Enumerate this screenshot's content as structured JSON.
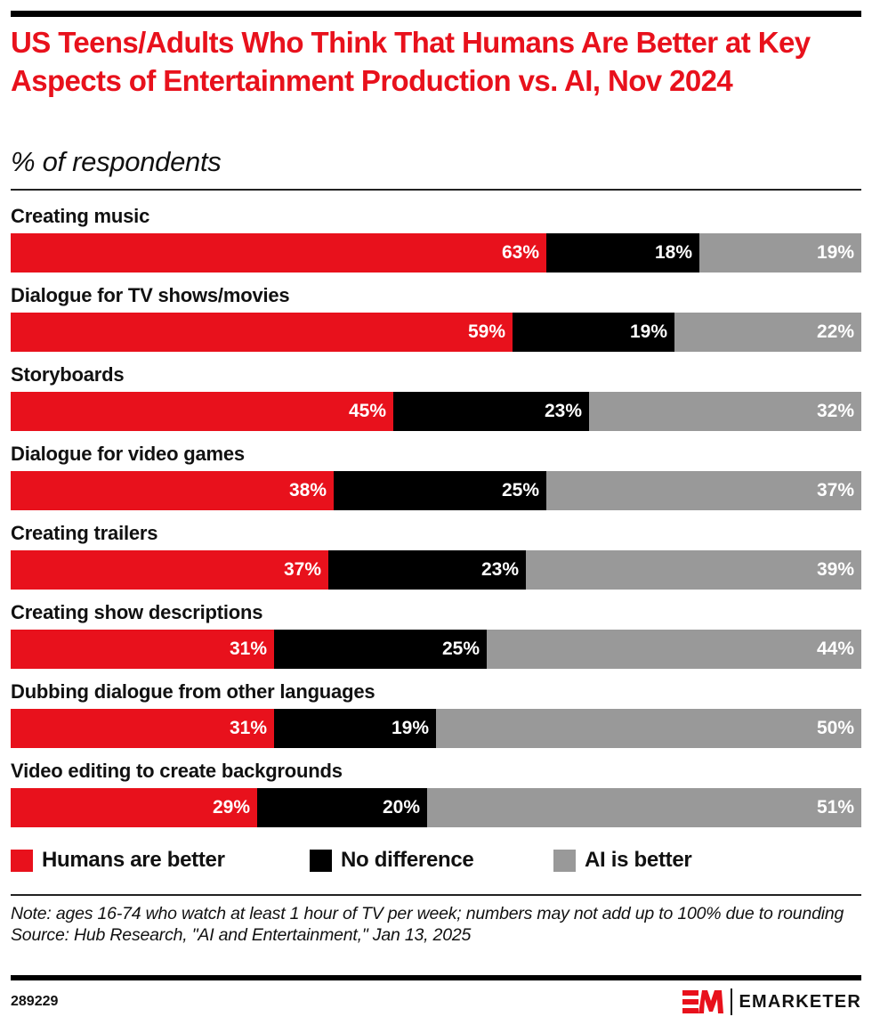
{
  "header": {
    "title": "US Teens/Adults Who Think That Humans Are Better at Key Aspects of Entertainment Production vs. AI, Nov 2024",
    "subtitle": "% of respondents"
  },
  "colors": {
    "humans": "#e8111c",
    "no_difference": "#000000",
    "ai": "#999999"
  },
  "chart_data": {
    "type": "bar",
    "orientation": "horizontal",
    "stacked": true,
    "title": "US Teens/Adults Who Think That Humans Are Better at Key Aspects of Entertainment Production vs. AI, Nov 2024",
    "subtitle": "% of respondents",
    "xlabel": "",
    "ylabel": "",
    "xlim": [
      0,
      100
    ],
    "grid": false,
    "legend_position": "bottom",
    "categories": [
      "Creating music",
      "Dialogue for TV shows/movies",
      "Storyboards",
      "Dialogue for video games",
      "Creating trailers",
      "Creating show descriptions",
      "Dubbing dialogue from other languages",
      "Video editing to create backgrounds"
    ],
    "series": [
      {
        "name": "Humans are better",
        "values": [
          63,
          59,
          45,
          38,
          37,
          31,
          31,
          29
        ],
        "labels": [
          "63%",
          "59%",
          "45%",
          "38%",
          "37%",
          "31%",
          "31%",
          "29%"
        ]
      },
      {
        "name": "No difference",
        "values": [
          18,
          19,
          23,
          25,
          23,
          25,
          19,
          20
        ],
        "labels": [
          "18%",
          "19%",
          "23%",
          "25%",
          "23%",
          "25%",
          "19%",
          "20%"
        ]
      },
      {
        "name": "AI is better",
        "values": [
          19,
          22,
          32,
          37,
          39,
          44,
          50,
          51
        ],
        "labels": [
          "19%",
          "22%",
          "32%",
          "37%",
          "39%",
          "44%",
          "50%",
          "51%"
        ]
      }
    ]
  },
  "legend": [
    {
      "label": "Humans are better"
    },
    {
      "label": "No difference"
    },
    {
      "label": "AI is better"
    }
  ],
  "footer": {
    "note": "Note: ages 16-74 who watch at least 1 hour of TV per week; numbers may not add up to 100% due to rounding",
    "source": "Source: Hub Research, \"AI and Entertainment,\" Jan 13, 2025",
    "chart_id": "289229",
    "brand": "EMARKETER"
  }
}
